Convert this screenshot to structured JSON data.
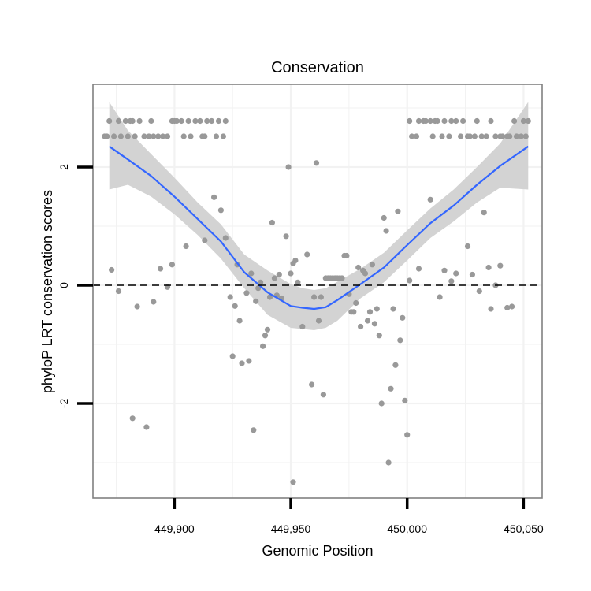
{
  "chart_data": {
    "type": "scatter",
    "title": "Conservation",
    "xlabel": "Genomic Position",
    "ylabel": "phyloP LRT conservation scores",
    "xlim": [
      449865,
      450058
    ],
    "ylim": [
      -3.6,
      3.4
    ],
    "x_ticks": [
      449900,
      449950,
      450000,
      450050
    ],
    "x_tick_labels": [
      "449,900",
      "449,950",
      "450,000",
      "450,050"
    ],
    "y_ticks": [
      -2,
      0,
      2
    ],
    "y_tick_labels": [
      "-2",
      "0",
      "2"
    ],
    "hline": 0,
    "colors": {
      "points": "#999999",
      "smooth": "#3366ff",
      "ribbon": "#d3d3d3",
      "grid": "#f2f2f2",
      "frame": "#808080"
    },
    "series": [
      {
        "name": "scores",
        "points": [
          [
            449870,
            2.52
          ],
          [
            449871,
            2.52
          ],
          [
            449872,
            2.78
          ],
          [
            449874,
            2.52
          ],
          [
            449876,
            2.78
          ],
          [
            449877,
            2.52
          ],
          [
            449879,
            2.78
          ],
          [
            449880,
            2.52
          ],
          [
            449881,
            2.78
          ],
          [
            449882,
            2.78
          ],
          [
            449883,
            2.52
          ],
          [
            449885,
            2.78
          ],
          [
            449887,
            2.52
          ],
          [
            449889,
            2.52
          ],
          [
            449890,
            2.78
          ],
          [
            449891,
            2.52
          ],
          [
            449893,
            2.52
          ],
          [
            449895,
            2.52
          ],
          [
            449897,
            2.52
          ],
          [
            449899,
            2.78
          ],
          [
            449900,
            2.78
          ],
          [
            449901,
            2.78
          ],
          [
            449903,
            2.78
          ],
          [
            449904,
            2.52
          ],
          [
            449906,
            2.78
          ],
          [
            449907,
            2.52
          ],
          [
            449909,
            2.78
          ],
          [
            449911,
            2.78
          ],
          [
            449912,
            2.52
          ],
          [
            449913,
            2.52
          ],
          [
            449914,
            2.78
          ],
          [
            449916,
            2.78
          ],
          [
            449918,
            2.52
          ],
          [
            449919,
            2.78
          ],
          [
            449921,
            2.52
          ],
          [
            449922,
            2.78
          ],
          [
            450001,
            2.78
          ],
          [
            450002,
            2.52
          ],
          [
            450004,
            2.52
          ],
          [
            450005,
            2.78
          ],
          [
            450007,
            2.78
          ],
          [
            450008,
            2.78
          ],
          [
            450010,
            2.78
          ],
          [
            450011,
            2.52
          ],
          [
            450012,
            2.78
          ],
          [
            450013,
            2.78
          ],
          [
            450015,
            2.52
          ],
          [
            450016,
            2.78
          ],
          [
            450018,
            2.52
          ],
          [
            450019,
            2.78
          ],
          [
            450021,
            2.78
          ],
          [
            450023,
            2.52
          ],
          [
            450024,
            2.78
          ],
          [
            450026,
            2.52
          ],
          [
            450027,
            2.52
          ],
          [
            450029,
            2.52
          ],
          [
            450030,
            2.78
          ],
          [
            450032,
            2.52
          ],
          [
            450034,
            2.52
          ],
          [
            450036,
            2.78
          ],
          [
            450038,
            2.52
          ],
          [
            450040,
            2.52
          ],
          [
            450041,
            2.52
          ],
          [
            450043,
            2.52
          ],
          [
            450044,
            2.52
          ],
          [
            450046,
            2.78
          ],
          [
            450047,
            2.52
          ],
          [
            450049,
            2.52
          ],
          [
            450050,
            2.78
          ],
          [
            450051,
            2.52
          ],
          [
            450052,
            2.78
          ],
          [
            449873,
            0.26
          ],
          [
            449876,
            -0.1
          ],
          [
            449882,
            -2.25
          ],
          [
            449884,
            -0.36
          ],
          [
            449888,
            -2.4
          ],
          [
            449891,
            -0.28
          ],
          [
            449894,
            0.28
          ],
          [
            449897,
            -0.03
          ],
          [
            449899,
            0.35
          ],
          [
            449905,
            0.66
          ],
          [
            449913,
            0.76
          ],
          [
            449917,
            1.49
          ],
          [
            449920,
            1.27
          ],
          [
            449922,
            0.8
          ],
          [
            449924,
            -0.2
          ],
          [
            449925,
            -1.2
          ],
          [
            449926,
            -0.35
          ],
          [
            449927,
            0.35
          ],
          [
            449928,
            -0.6
          ],
          [
            449929,
            -1.32
          ],
          [
            449931,
            -0.13
          ],
          [
            449932,
            -1.28
          ],
          [
            449933,
            0.2
          ],
          [
            449934,
            -2.45
          ],
          [
            449935,
            -0.27
          ],
          [
            449936,
            -0.05
          ],
          [
            449937,
            0.05
          ],
          [
            449938,
            -1.03
          ],
          [
            449939,
            -0.85
          ],
          [
            449940,
            -0.75
          ],
          [
            449941,
            -0.2
          ],
          [
            449942,
            1.06
          ],
          [
            449943,
            0.12
          ],
          [
            449944,
            -0.17
          ],
          [
            449945,
            0.18
          ],
          [
            449946,
            -0.22
          ],
          [
            449948,
            0.83
          ],
          [
            449949,
            2.0
          ],
          [
            449950,
            0.2
          ],
          [
            449951,
            0.37
          ],
          [
            449952,
            0.42
          ],
          [
            449953,
            0.05
          ],
          [
            449955,
            -0.7
          ],
          [
            449957,
            0.52
          ],
          [
            449959,
            -1.68
          ],
          [
            449960,
            -0.2
          ],
          [
            449961,
            2.07
          ],
          [
            449962,
            -0.6
          ],
          [
            449963,
            -0.2
          ],
          [
            449964,
            -1.85
          ],
          [
            449965,
            0.12
          ],
          [
            449966,
            0.12
          ],
          [
            449967,
            0.12
          ],
          [
            449968,
            0.12
          ],
          [
            449969,
            0.12
          ],
          [
            449970,
            0.12
          ],
          [
            449971,
            0.12
          ],
          [
            449972,
            0.12
          ],
          [
            449973,
            0.5
          ],
          [
            449974,
            0.5
          ],
          [
            449975,
            -0.15
          ],
          [
            449976,
            -0.45
          ],
          [
            449977,
            -0.45
          ],
          [
            449978,
            -0.3
          ],
          [
            449979,
            0.3
          ],
          [
            449980,
            -0.7
          ],
          [
            449981,
            0.25
          ],
          [
            449982,
            0.2
          ],
          [
            449983,
            -0.6
          ],
          [
            449984,
            -0.45
          ],
          [
            449985,
            0.35
          ],
          [
            449986,
            -0.65
          ],
          [
            449987,
            -0.4
          ],
          [
            449988,
            -0.85
          ],
          [
            449989,
            -2.0
          ],
          [
            449990,
            1.14
          ],
          [
            449991,
            0.92
          ],
          [
            449992,
            -3.0
          ],
          [
            449993,
            -1.75
          ],
          [
            449994,
            -0.4
          ],
          [
            449995,
            -1.35
          ],
          [
            449996,
            1.25
          ],
          [
            449997,
            -0.93
          ],
          [
            449998,
            -0.55
          ],
          [
            449999,
            -1.95
          ],
          [
            450000,
            -2.53
          ],
          [
            450001,
            0.08
          ],
          [
            450005,
            0.28
          ],
          [
            450010,
            1.45
          ],
          [
            450014,
            -0.2
          ],
          [
            450016,
            0.25
          ],
          [
            450019,
            0.07
          ],
          [
            450021,
            0.2
          ],
          [
            450026,
            0.66
          ],
          [
            450028,
            0.18
          ],
          [
            450031,
            -0.1
          ],
          [
            450033,
            1.23
          ],
          [
            450035,
            0.3
          ],
          [
            450036,
            -0.4
          ],
          [
            450038,
            0.0
          ],
          [
            450040,
            0.33
          ],
          [
            450043,
            -0.38
          ],
          [
            450045,
            -0.36
          ],
          [
            449951,
            -3.33
          ]
        ]
      }
    ],
    "smooth": {
      "x": [
        449872,
        449880,
        449890,
        449900,
        449910,
        449920,
        449930,
        449940,
        449950,
        449955,
        449960,
        449965,
        449970,
        449980,
        449990,
        450000,
        450010,
        450020,
        450030,
        450040,
        450052
      ],
      "y": [
        2.35,
        2.13,
        1.85,
        1.5,
        1.12,
        0.74,
        0.22,
        -0.12,
        -0.35,
        -0.38,
        -0.4,
        -0.37,
        -0.25,
        0.02,
        0.3,
        0.68,
        1.05,
        1.35,
        1.7,
        2.02,
        2.35
      ],
      "upper": [
        3.1,
        2.62,
        2.22,
        1.82,
        1.4,
        1.03,
        0.52,
        0.25,
        0.02,
        -0.05,
        -0.08,
        -0.05,
        0.06,
        0.28,
        0.55,
        0.93,
        1.3,
        1.62,
        2.0,
        2.4,
        3.1
      ],
      "lower": [
        1.62,
        1.7,
        1.5,
        1.2,
        0.85,
        0.45,
        -0.05,
        -0.5,
        -0.72,
        -0.74,
        -0.76,
        -0.72,
        -0.6,
        -0.22,
        0.05,
        0.42,
        0.8,
        1.08,
        1.4,
        1.65,
        1.62
      ]
    }
  }
}
